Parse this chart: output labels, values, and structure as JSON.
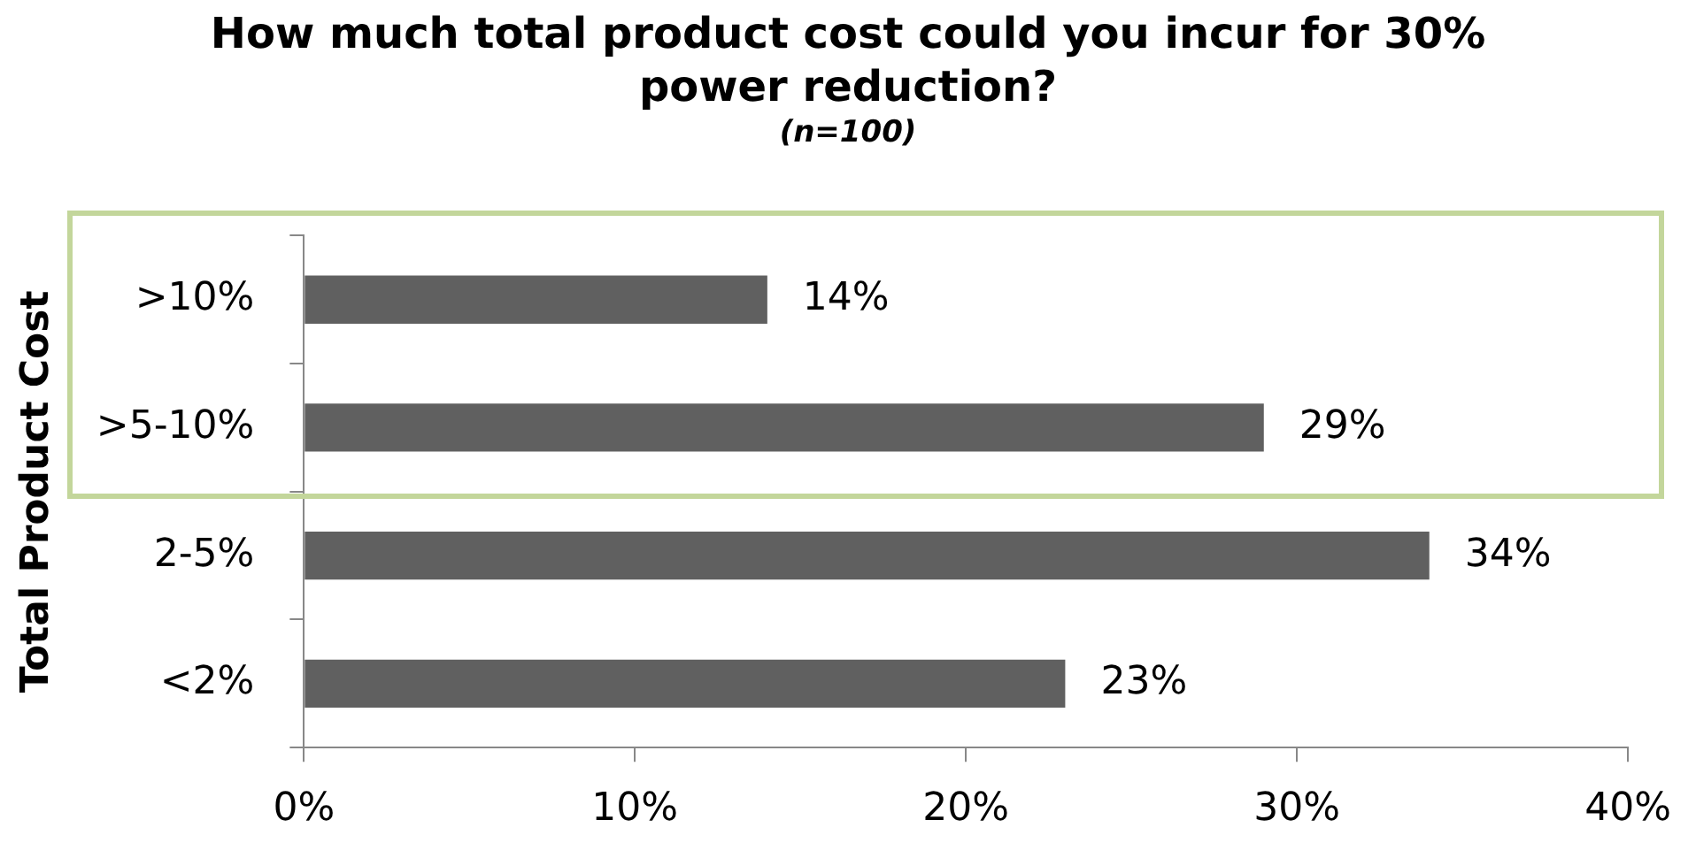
{
  "chart_data": {
    "type": "bar",
    "orientation": "horizontal",
    "title": "How much total product cost could you incur for 30% power reduction?",
    "subtitle": "(n=100)",
    "ylabel": "Total Product Cost",
    "categories": [
      ">10%",
      ">5-10%",
      "2-5%",
      "<2%"
    ],
    "values": [
      14,
      29,
      34,
      23
    ],
    "color": "#606060",
    "value_labels": [
      "14%",
      "29%",
      "34%",
      "23%"
    ],
    "xlim": [
      0,
      40
    ],
    "xticks": [
      {
        "value": 0,
        "label": "0%"
      },
      {
        "value": 10,
        "label": "10%"
      },
      {
        "value": 20,
        "label": "20%"
      },
      {
        "value": 30,
        "label": "30%"
      },
      {
        "value": 40,
        "label": "40%"
      }
    ],
    "legend": false
  }
}
